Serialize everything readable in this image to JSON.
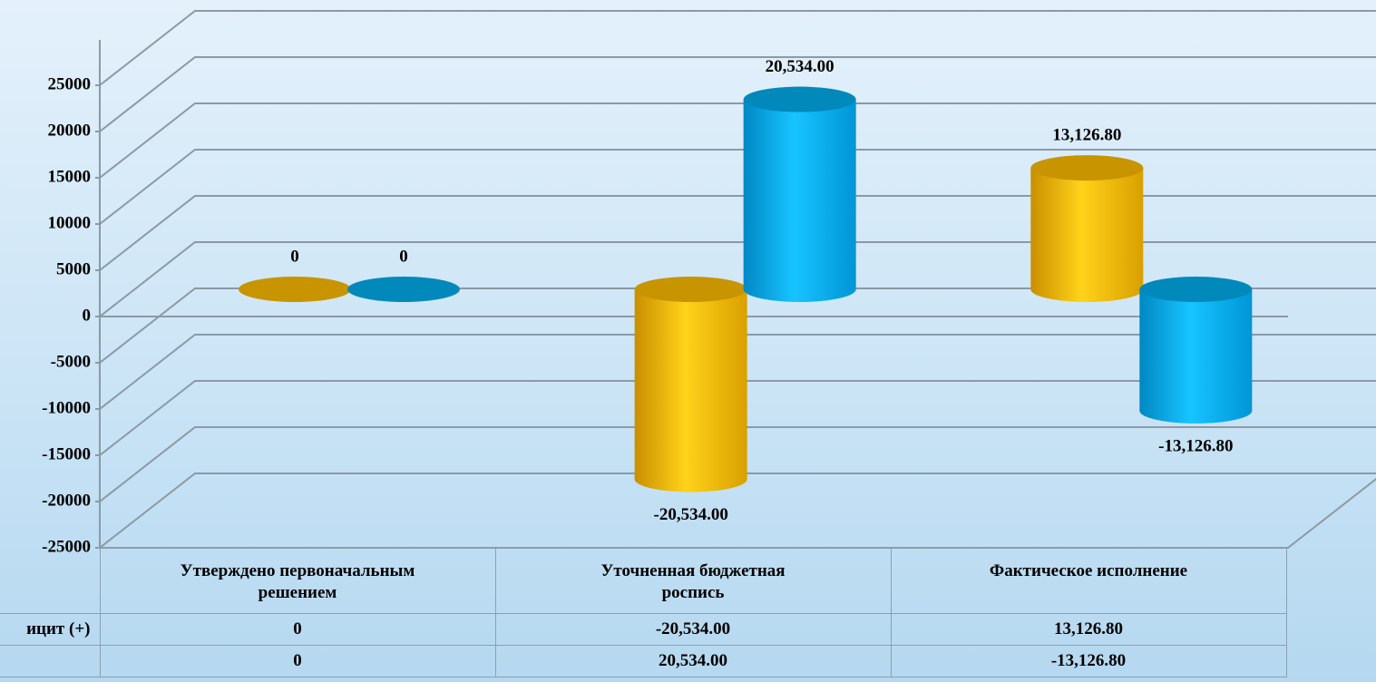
{
  "chart_data": {
    "type": "bar3d",
    "categories": [
      "Утверждено первоначальным решением",
      "Уточненная бюджетная роспись",
      "Фактическое исполнение"
    ],
    "series": [
      {
        "name": "ицит (+)",
        "color": "#f5b800",
        "values": [
          0,
          -20534,
          13126.8
        ],
        "value_labels": [
          "0",
          "-20,534.00",
          "13,126.80"
        ]
      },
      {
        "color": "#00aef0",
        "values": [
          0,
          20534,
          -13126.8
        ],
        "value_labels": [
          "0",
          "20,534.00",
          "-13,126.80"
        ]
      }
    ],
    "ylim": [
      -25000,
      25000
    ],
    "yticks": [
      -25000,
      -20000,
      -15000,
      -10000,
      -5000,
      0,
      5000,
      10000,
      15000,
      20000,
      25000
    ],
    "grid": true
  }
}
